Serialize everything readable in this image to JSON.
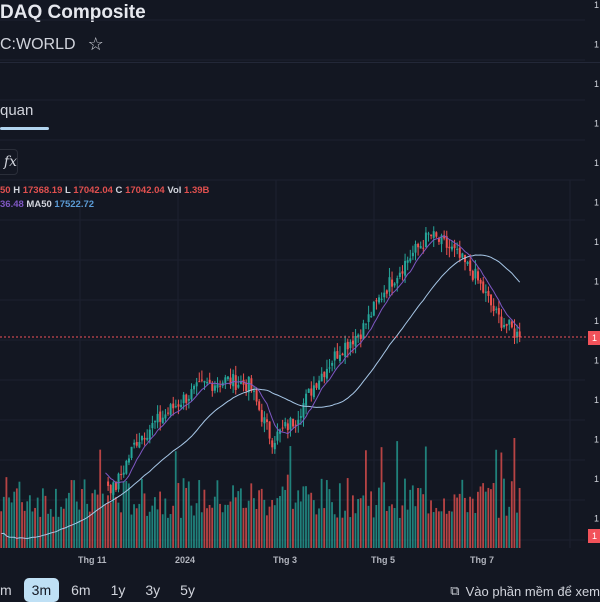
{
  "header": {
    "title": "DAQ Composite",
    "symbol": "C:WORLD",
    "star_icon": "star-icon"
  },
  "tabs": [
    {
      "label": "quan",
      "active": true
    }
  ],
  "toolbar": {
    "indicators_icon": "fx-icon",
    "indicators_label": "fx"
  },
  "legend": {
    "o_value_tail": "50",
    "h_label": "H",
    "h_value": "17368.19",
    "l_label": "L",
    "l_value": "17042.04",
    "c_label": "C",
    "c_value": "17042.04",
    "vol_label": "Vol",
    "vol_value": "1.39B",
    "ma_short_value_tail": "36.48",
    "ma50_label": "MA50",
    "ma50_value": "17522.72"
  },
  "x_axis": [
    "Thg 11",
    "2024",
    "Thg 3",
    "Thg 5",
    "Thg 7"
  ],
  "y_axis_tick_fragment": "1",
  "price_tag": "1",
  "volume_tag": "1",
  "ranges": [
    {
      "label": "m",
      "active": false
    },
    {
      "label": "3m",
      "active": true
    },
    {
      "label": "6m",
      "active": false
    },
    {
      "label": "1y",
      "active": false
    },
    {
      "label": "3y",
      "active": false
    },
    {
      "label": "5y",
      "active": false
    }
  ],
  "open_app": {
    "icon": "external-screen-icon",
    "label": "Vào phần mềm để xem"
  },
  "colors": {
    "up": "#26a69a",
    "down": "#ef5350",
    "ma_short": "#7e57c2",
    "ma50": "#a7c7e7",
    "last_price_line": "#f2525a"
  },
  "price_path": [
    13900,
    13780,
    14114,
    14434,
    14994,
    14594,
    15394,
    15714,
    16034,
    16274,
    16354,
    16274,
    15394,
    15714,
    16354,
    16834,
    17154,
    17794,
    18274,
    18674,
    18434,
    18034,
    17368,
    17042
  ]
}
